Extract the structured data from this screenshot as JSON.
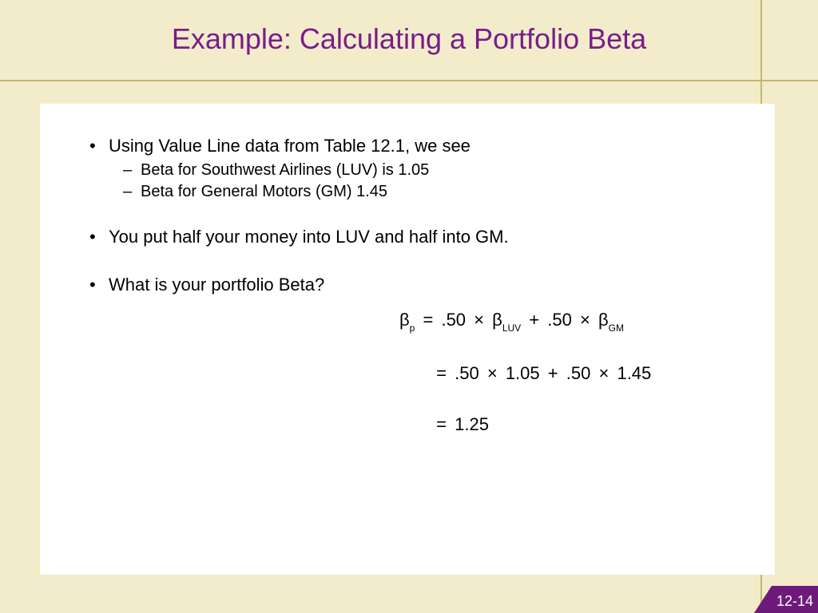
{
  "colors": {
    "slide_bg": "#f2eccb",
    "content_bg": "#ffffff",
    "title_color": "#7a1c8a",
    "rule_color": "#c8b56a",
    "badge_bg": "#6d1a7a",
    "text_color": "#000000"
  },
  "title": "Example: Calculating a Portfolio Beta",
  "bullets": [
    {
      "text": "Using Value Line data from Table 12.1, we see",
      "sub": [
        "Beta for Southwest Airlines (LUV) is 1.05",
        "Beta for General Motors (GM) 1.45"
      ]
    },
    {
      "text": "You put half your money into LUV and half into GM."
    },
    {
      "text": "What is your portfolio Beta?"
    }
  ],
  "equation": {
    "symbol": "β",
    "portfolio_sub": "p",
    "weight1": ".50",
    "sub1": "LUV",
    "weight2": ".50",
    "sub2": "GM",
    "val1": "1.05",
    "val2": "1.45",
    "result": "1.25",
    "eq": "=",
    "times": "×",
    "plus": "+"
  },
  "page_label": "12-14"
}
